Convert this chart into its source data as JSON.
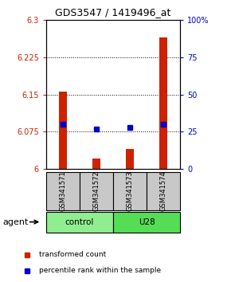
{
  "title": "GDS3547 / 1419496_at",
  "samples": [
    "GSM341571",
    "GSM341572",
    "GSM341573",
    "GSM341574"
  ],
  "bar_values": [
    6.155,
    6.022,
    6.04,
    6.265
  ],
  "bar_base": 6.0,
  "percentile_values": [
    30,
    27,
    28,
    30
  ],
  "ylim_left": [
    6.0,
    6.3
  ],
  "ylim_right": [
    0,
    100
  ],
  "yticks_left": [
    6.0,
    6.075,
    6.15,
    6.225,
    6.3
  ],
  "yticks_right": [
    0,
    25,
    50,
    75,
    100
  ],
  "ytick_labels_left": [
    "6",
    "6.075",
    "6.15",
    "6.225",
    "6.3"
  ],
  "ytick_labels_right": [
    "0",
    "25",
    "50",
    "75",
    "100%"
  ],
  "bar_color": "#CC2200",
  "dot_color": "#0000CC",
  "legend_items": [
    "transformed count",
    "percentile rank within the sample"
  ],
  "agent_label": "agent",
  "bar_width": 0.25,
  "group_info": [
    {
      "label": "control",
      "start": 0,
      "end": 2,
      "color": "#90EE90"
    },
    {
      "label": "U28",
      "start": 2,
      "end": 4,
      "color": "#55DD55"
    }
  ]
}
